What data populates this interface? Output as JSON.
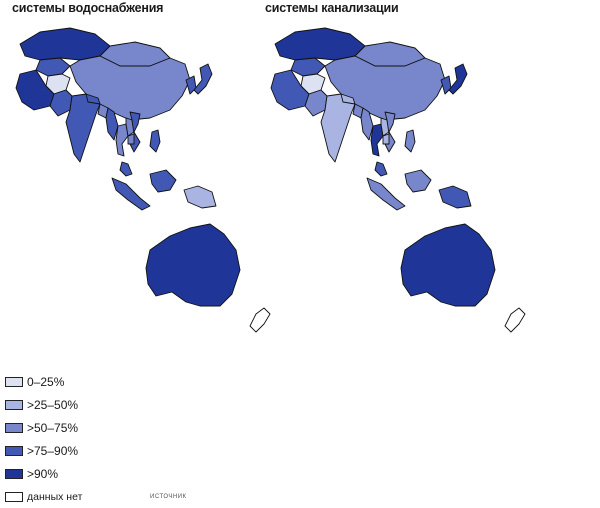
{
  "titles": {
    "left": "системы водоснабжения",
    "right": "системы канализации"
  },
  "legend": [
    {
      "label": "0–25%",
      "color": "#dde2f3"
    },
    {
      "label": ">25–50%",
      "color": "#aab4e2"
    },
    {
      "label": ">50–75%",
      "color": "#7887cb"
    },
    {
      "label": ">75–90%",
      "color": "#4258b5"
    },
    {
      "label": ">90%",
      "color": "#1f3698"
    },
    {
      "label": "данных нет",
      "color": "#ffffff"
    }
  ],
  "maps": {
    "left": {
      "kazakhstan": 4,
      "mongolia": 2,
      "china": 2,
      "japan": 3,
      "korea": 3,
      "afghanistan": 0,
      "iran": 4,
      "pakistan": 3,
      "india": 3,
      "central_asia": 3,
      "nepal": 3,
      "bangladesh": 2,
      "myanmar": 3,
      "thailand": 2,
      "laos": 2,
      "vietnam": 3,
      "cambodia": 2,
      "malaysia": 3,
      "philippines": 3,
      "indonesia_w": 3,
      "indonesia_e": 3,
      "papua": 1,
      "australia": 4,
      "nz": 5
    },
    "right": {
      "kazakhstan": 4,
      "mongolia": 2,
      "china": 2,
      "japan": 4,
      "korea": 3,
      "afghanistan": 0,
      "iran": 3,
      "pakistan": 2,
      "india": 1,
      "central_asia": 3,
      "nepal": 1,
      "bangladesh": 2,
      "myanmar": 2,
      "thailand": 4,
      "laos": 1,
      "vietnam": 2,
      "cambodia": 1,
      "malaysia": 3,
      "philippines": 2,
      "indonesia_w": 2,
      "indonesia_e": 2,
      "papua": 3,
      "australia": 4,
      "nz": 5
    }
  },
  "source_note": "ИСТОЧНИК"
}
